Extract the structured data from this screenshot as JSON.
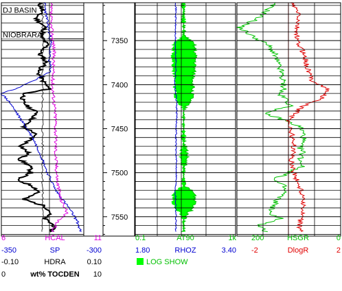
{
  "chart_data": {
    "type": "line",
    "depth_ticks": [
      7350,
      7400,
      7450,
      7500,
      7550
    ],
    "depth_range": [
      7307,
      7572
    ],
    "formation_tops": [
      {
        "name": "DJ BASIN",
        "depth": 7320
      },
      {
        "name": "NIOBRARA",
        "depth": 7348
      }
    ],
    "colors": {
      "HCAL": "#e000e0",
      "SP": "#0000d0",
      "HDRA": "#000000",
      "TOCDEN": "#000000",
      "AT90": "#00c000",
      "RHOZ": "#0000d0",
      "HSGR": "#00c000",
      "DlogR": "#e00000",
      "fill": "#00ff00",
      "grid": "#000000"
    },
    "tracks": [
      {
        "id": "track1",
        "scales": [
          {
            "left": "6",
            "name": "HCAL",
            "right": "11",
            "color": "#e000e0"
          },
          {
            "left": "-350",
            "name": "SP",
            "right": "-300",
            "color": "#0000d0"
          },
          {
            "left": "-0.10",
            "name": "HDRA",
            "right": "0.10",
            "color": "#000000"
          },
          {
            "left": "0",
            "name": "wt% TOCDEN",
            "right": "10",
            "color": "#000000"
          }
        ]
      },
      {
        "id": "track3",
        "scales": [
          {
            "left": "0.1",
            "name": "AT90",
            "right": "1k",
            "color": "#00c000"
          },
          {
            "left": "1.80",
            "name": "RHOZ",
            "right": "3.40",
            "color": "#0000d0"
          }
        ],
        "legend": "LOG SHOW"
      },
      {
        "id": "track4",
        "scales": [
          {
            "left": "200",
            "name": "HSGR",
            "right": "0",
            "color": "#00c000"
          },
          {
            "left": "-2",
            "name": "DlogR",
            "right": "2",
            "color": "#e00000"
          }
        ]
      }
    ],
    "series": {
      "TOCDEN": {
        "depths": [
          7307,
          7315,
          7325,
          7335,
          7345,
          7355,
          7365,
          7375,
          7385,
          7395,
          7405,
          7410,
          7418,
          7425,
          7432,
          7440,
          7448,
          7455,
          7462,
          7470,
          7478,
          7485,
          7492,
          7500,
          7508,
          7515,
          7522,
          7530,
          7538,
          7545,
          7552,
          7560,
          7567
        ],
        "values": [
          4.5,
          5.0,
          4.2,
          5.3,
          4.8,
          5.6,
          4.6,
          5.5,
          4.4,
          5.0,
          5.8,
          2.8,
          2.5,
          3.2,
          4.4,
          3.6,
          2.6,
          4.1,
          3.6,
          2.4,
          3.3,
          2.2,
          3.4,
          3.6,
          1.8,
          3.8,
          4.6,
          2.6,
          5.3,
          6.0,
          5.2,
          6.4,
          6.0
        ]
      },
      "SP": {
        "depths": [
          7307,
          7330,
          7350,
          7370,
          7385,
          7395,
          7405,
          7410,
          7420,
          7440,
          7460,
          7480,
          7500,
          7520,
          7540,
          7555,
          7567
        ],
        "values": [
          -324,
          -322,
          -320,
          -321,
          -320,
          -330,
          -342,
          -350,
          -345,
          -338,
          -331,
          -326,
          -322,
          -317,
          -309,
          -304,
          -302
        ]
      },
      "HCAL": {
        "depths": [
          7307,
          7330,
          7360,
          7400,
          7440,
          7480,
          7510,
          7530,
          7545,
          7555,
          7567
        ],
        "values": [
          9.0,
          9.0,
          9.2,
          9.1,
          9.3,
          9.3,
          9.4,
          9.6,
          10.0,
          9.4,
          9.1
        ]
      },
      "AT90": {
        "depths": [
          7307,
          7330,
          7345,
          7355,
          7370,
          7385,
          7400,
          7415,
          7425,
          7440,
          7460,
          7480,
          7500,
          7515,
          7525,
          7535,
          7545,
          7555,
          7567
        ],
        "values": [
          8,
          8,
          9,
          22,
          25,
          22,
          20,
          18,
          10,
          8,
          8,
          12,
          8,
          9,
          24,
          26,
          14,
          9,
          8
        ]
      },
      "RHOZ": {
        "depths": [
          7307,
          7340,
          7360,
          7380,
          7400,
          7420,
          7440,
          7460,
          7480,
          7500,
          7520,
          7540,
          7560,
          7567
        ],
        "values": [
          2.45,
          2.44,
          2.44,
          2.45,
          2.43,
          2.46,
          2.46,
          2.45,
          2.45,
          2.46,
          2.44,
          2.45,
          2.45,
          2.44
        ]
      },
      "HSGR": {
        "depths": [
          7307,
          7315,
          7325,
          7335,
          7345,
          7355,
          7365,
          7375,
          7385,
          7395,
          7405,
          7410,
          7418,
          7425,
          7432,
          7440,
          7448,
          7455,
          7462,
          7470,
          7478,
          7485,
          7492,
          7500,
          7508,
          7515,
          7522,
          7530,
          7538,
          7545,
          7552,
          7560,
          7567
        ],
        "values": [
          130,
          140,
          160,
          195,
          170,
          140,
          128,
          122,
          115,
          112,
          108,
          120,
          102,
          98,
          150,
          110,
          78,
          72,
          72,
          80,
          72,
          78,
          72,
          100,
          130,
          110,
          108,
          122,
          128,
          140,
          115,
          160,
          145
        ]
      },
      "DlogR": {
        "depths": [
          7307,
          7320,
          7335,
          7350,
          7365,
          7380,
          7395,
          7405,
          7415,
          7425,
          7440,
          7455,
          7470,
          7485,
          7500,
          7515,
          7530,
          7545,
          7560,
          7567
        ],
        "values": [
          0.1,
          0.4,
          0.3,
          0.3,
          0.6,
          0.7,
          0.9,
          1.5,
          1.3,
          0.5,
          0.0,
          0.1,
          0.2,
          0.1,
          0.2,
          0.4,
          0.6,
          0.5,
          0.4,
          0.5
        ]
      }
    }
  }
}
